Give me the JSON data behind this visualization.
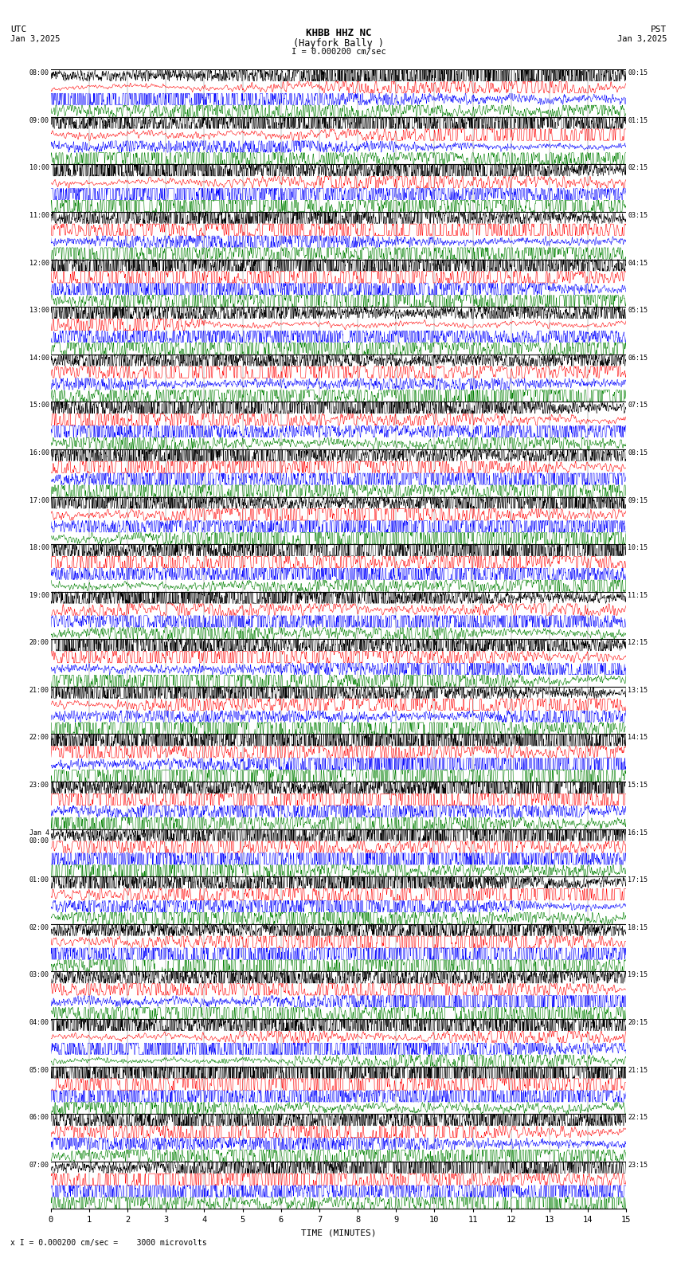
{
  "title_line1": "KHBB HHZ NC",
  "title_line2": "(Hayfork Bally )",
  "scale_label": "I = 0.000200 cm/sec",
  "utc_label": "UTC",
  "pst_label": "PST",
  "date_left": "Jan 3,2025",
  "date_right": "Jan 3,2025",
  "bottom_note": "x I = 0.000200 cm/sec =    3000 microvolts",
  "xlabel": "TIME (MINUTES)",
  "left_times": [
    "08:00",
    "09:00",
    "10:00",
    "11:00",
    "12:00",
    "13:00",
    "14:00",
    "15:00",
    "16:00",
    "17:00",
    "18:00",
    "19:00",
    "20:00",
    "21:00",
    "22:00",
    "23:00",
    "Jan 4\n00:00",
    "01:00",
    "02:00",
    "03:00",
    "04:00",
    "05:00",
    "06:00",
    "07:00"
  ],
  "right_times": [
    "00:15",
    "01:15",
    "02:15",
    "03:15",
    "04:15",
    "05:15",
    "06:15",
    "07:15",
    "08:15",
    "09:15",
    "10:15",
    "11:15",
    "12:15",
    "13:15",
    "14:15",
    "15:15",
    "16:15",
    "17:15",
    "18:15",
    "19:15",
    "20:15",
    "21:15",
    "22:15",
    "23:15"
  ],
  "n_rows": 24,
  "traces_per_row": 4,
  "colors": [
    "black",
    "red",
    "blue",
    "green"
  ],
  "fig_width": 8.5,
  "fig_height": 15.84,
  "bg_color": "white",
  "plot_bg": "white",
  "minutes": 15,
  "xticks": [
    0,
    1,
    2,
    3,
    4,
    5,
    6,
    7,
    8,
    9,
    10,
    11,
    12,
    13,
    14,
    15
  ],
  "seed": 42
}
